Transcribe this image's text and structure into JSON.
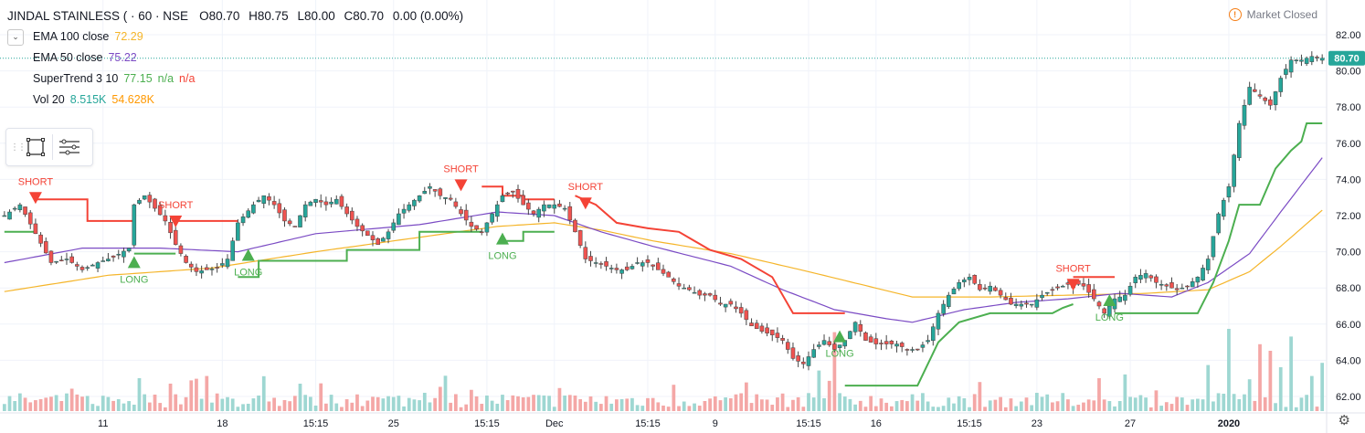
{
  "header": {
    "symbol": "JINDAL STAINLESS ( · 60 · NSE",
    "open": "O80.70",
    "high": "H80.75",
    "low": "L80.00",
    "close": "C80.70",
    "change": "0.00 (0.00%)",
    "market_status": "Market Closed"
  },
  "indicators": [
    {
      "name": "EMA 100 close",
      "value": "72.29",
      "color": "#f5b52a"
    },
    {
      "name": "EMA 50 close",
      "value": "75.22",
      "color": "#7b4bc4"
    },
    {
      "name": "SuperTrend 3 10",
      "value": "77.15",
      "extra1": "n/a",
      "extra2": "n/a",
      "color": "#4caf50",
      "color2": "#f44336"
    },
    {
      "name": "Vol 20",
      "value": "8.515K",
      "extra1": "54.628K",
      "color": "#26a69a",
      "color2": "#ff9800"
    }
  ],
  "toolbar": {
    "grip_icon": "drag-handle-icon",
    "rect_icon": "rectangle-tool-icon",
    "list_icon": "settings-list-icon"
  },
  "chart_data": {
    "type": "candlestick",
    "y_axis": {
      "min": 62,
      "max": 82,
      "ticks": [
        "82.00",
        "80.00",
        "78.00",
        "76.00",
        "74.00",
        "72.00",
        "70.00",
        "68.00",
        "66.00",
        "64.00",
        "62.00"
      ]
    },
    "last_price_label": "80.70",
    "x_ticks": [
      {
        "label": "11",
        "bar": 19
      },
      {
        "label": "18",
        "bar": 42
      },
      {
        "label": "15:15",
        "bar": 60
      },
      {
        "label": "25",
        "bar": 75
      },
      {
        "label": "15:15",
        "bar": 93
      },
      {
        "label": "Dec",
        "bar": 106
      },
      {
        "label": "15:15",
        "bar": 124
      },
      {
        "label": "9",
        "bar": 137
      },
      {
        "label": "15:15",
        "bar": 155
      },
      {
        "label": "16",
        "bar": 168
      },
      {
        "label": "15:15",
        "bar": 186
      },
      {
        "label": "23",
        "bar": 199
      },
      {
        "label": "27",
        "bar": 217
      },
      {
        "label": "2020",
        "bar": 236
      }
    ],
    "price_anchors": [
      [
        0,
        72.0
      ],
      [
        3,
        72.6
      ],
      [
        6,
        71.0
      ],
      [
        9,
        69.4
      ],
      [
        12,
        69.6
      ],
      [
        15,
        69.0
      ],
      [
        18,
        69.4
      ],
      [
        21,
        69.7
      ],
      [
        24,
        70.2
      ],
      [
        25,
        72.6
      ],
      [
        27,
        73.1
      ],
      [
        29,
        72.4
      ],
      [
        31,
        71.7
      ],
      [
        33,
        70.4
      ],
      [
        35,
        69.4
      ],
      [
        37,
        68.9
      ],
      [
        39,
        69.0
      ],
      [
        41,
        69.1
      ],
      [
        43,
        69.6
      ],
      [
        45,
        71.6
      ],
      [
        48,
        72.6
      ],
      [
        50,
        73.1
      ],
      [
        52,
        72.6
      ],
      [
        54,
        71.7
      ],
      [
        56,
        71.4
      ],
      [
        58,
        72.6
      ],
      [
        60,
        72.9
      ],
      [
        62,
        72.6
      ],
      [
        64,
        72.9
      ],
      [
        66,
        72.1
      ],
      [
        68,
        71.4
      ],
      [
        70,
        70.9
      ],
      [
        72,
        70.4
      ],
      [
        74,
        71.1
      ],
      [
        76,
        72.1
      ],
      [
        78,
        72.6
      ],
      [
        80,
        73.1
      ],
      [
        82,
        73.6
      ],
      [
        84,
        73.1
      ],
      [
        86,
        72.9
      ],
      [
        88,
        72.1
      ],
      [
        90,
        71.4
      ],
      [
        92,
        71.1
      ],
      [
        94,
        72.1
      ],
      [
        96,
        73.1
      ],
      [
        98,
        73.3
      ],
      [
        100,
        72.6
      ],
      [
        102,
        72.1
      ],
      [
        104,
        72.6
      ],
      [
        106,
        72.6
      ],
      [
        108,
        72.4
      ],
      [
        110,
        71.1
      ],
      [
        112,
        69.6
      ],
      [
        114,
        69.4
      ],
      [
        116,
        69.2
      ],
      [
        118,
        69.0
      ],
      [
        120,
        69.0
      ],
      [
        122,
        69.4
      ],
      [
        124,
        69.4
      ],
      [
        126,
        69.0
      ],
      [
        128,
        68.6
      ],
      [
        130,
        68.1
      ],
      [
        132,
        67.9
      ],
      [
        134,
        67.6
      ],
      [
        136,
        67.6
      ],
      [
        138,
        67.1
      ],
      [
        140,
        67.1
      ],
      [
        142,
        66.6
      ],
      [
        144,
        65.9
      ],
      [
        146,
        65.6
      ],
      [
        148,
        65.4
      ],
      [
        150,
        65.1
      ],
      [
        152,
        64.1
      ],
      [
        154,
        63.8
      ],
      [
        156,
        64.6
      ],
      [
        158,
        65.1
      ],
      [
        160,
        64.6
      ],
      [
        162,
        65.1
      ],
      [
        164,
        66.1
      ],
      [
        166,
        65.1
      ],
      [
        168,
        64.9
      ],
      [
        170,
        64.9
      ],
      [
        172,
        64.9
      ],
      [
        174,
        64.6
      ],
      [
        176,
        64.6
      ],
      [
        178,
        65.1
      ],
      [
        180,
        66.6
      ],
      [
        182,
        67.6
      ],
      [
        184,
        68.3
      ],
      [
        186,
        68.6
      ],
      [
        188,
        67.9
      ],
      [
        190,
        68.1
      ],
      [
        192,
        67.6
      ],
      [
        194,
        67.1
      ],
      [
        196,
        67.1
      ],
      [
        198,
        67.1
      ],
      [
        200,
        67.6
      ],
      [
        202,
        67.9
      ],
      [
        204,
        68.1
      ],
      [
        206,
        68.3
      ],
      [
        208,
        68.1
      ],
      [
        210,
        67.4
      ],
      [
        212,
        66.6
      ],
      [
        214,
        67.4
      ],
      [
        216,
        67.6
      ],
      [
        218,
        68.6
      ],
      [
        220,
        68.8
      ],
      [
        222,
        68.3
      ],
      [
        224,
        68.1
      ],
      [
        226,
        67.9
      ],
      [
        228,
        68.1
      ],
      [
        230,
        68.6
      ],
      [
        232,
        69.6
      ],
      [
        234,
        72.1
      ],
      [
        236,
        73.6
      ],
      [
        238,
        77.1
      ],
      [
        240,
        79.1
      ],
      [
        242,
        78.6
      ],
      [
        244,
        78.1
      ],
      [
        246,
        79.6
      ],
      [
        248,
        80.6
      ],
      [
        250,
        80.6
      ],
      [
        252,
        80.8
      ],
      [
        254,
        80.7
      ]
    ],
    "bar_count": 255,
    "ema50_anchors": [
      [
        0,
        69.4
      ],
      [
        15,
        70.2
      ],
      [
        30,
        70.2
      ],
      [
        45,
        70.0
      ],
      [
        60,
        71.0
      ],
      [
        80,
        71.5
      ],
      [
        95,
        72.2
      ],
      [
        106,
        72.0
      ],
      [
        115,
        71.1
      ],
      [
        125,
        70.3
      ],
      [
        140,
        69.2
      ],
      [
        150,
        67.9
      ],
      [
        160,
        66.8
      ],
      [
        170,
        66.3
      ],
      [
        175,
        66.1
      ],
      [
        185,
        66.8
      ],
      [
        195,
        67.2
      ],
      [
        205,
        67.4
      ],
      [
        215,
        67.7
      ],
      [
        225,
        67.5
      ],
      [
        232,
        68.3
      ],
      [
        240,
        69.9
      ],
      [
        246,
        72.2
      ],
      [
        254,
        75.2
      ]
    ],
    "ema100_anchors": [
      [
        0,
        67.8
      ],
      [
        20,
        68.7
      ],
      [
        40,
        69.1
      ],
      [
        60,
        70.0
      ],
      [
        80,
        70.8
      ],
      [
        95,
        71.4
      ],
      [
        106,
        71.6
      ],
      [
        115,
        71.2
      ],
      [
        125,
        70.6
      ],
      [
        140,
        69.9
      ],
      [
        155,
        68.9
      ],
      [
        165,
        68.2
      ],
      [
        175,
        67.5
      ],
      [
        190,
        67.5
      ],
      [
        205,
        67.6
      ],
      [
        220,
        67.7
      ],
      [
        232,
        67.9
      ],
      [
        240,
        68.9
      ],
      [
        246,
        70.3
      ],
      [
        254,
        72.3
      ]
    ],
    "supertrend_segments": [
      {
        "trend": "up",
        "points": [
          [
            0,
            71.1
          ],
          [
            6,
            71.1
          ]
        ]
      },
      {
        "trend": "down",
        "points": [
          [
            6,
            72.9
          ],
          [
            16,
            72.9
          ],
          [
            16,
            71.7
          ],
          [
            24,
            71.7
          ],
          [
            25,
            71.7
          ]
        ]
      },
      {
        "trend": "up",
        "points": [
          [
            25,
            69.9
          ],
          [
            33,
            69.9
          ]
        ]
      },
      {
        "trend": "down",
        "points": [
          [
            33,
            71.7
          ],
          [
            45,
            71.7
          ]
        ]
      },
      {
        "trend": "up",
        "points": [
          [
            45,
            68.6
          ],
          [
            49,
            68.6
          ],
          [
            49,
            69.5
          ],
          [
            66,
            69.5
          ],
          [
            66,
            70.1
          ],
          [
            80,
            70.1
          ],
          [
            80,
            71.1
          ],
          [
            92,
            71.1
          ]
        ]
      },
      {
        "trend": "down",
        "points": [
          [
            92,
            73.6
          ],
          [
            96,
            73.6
          ],
          [
            96,
            73.1
          ],
          [
            100,
            73.1
          ],
          [
            100,
            72.9
          ],
          [
            106,
            72.9
          ]
        ]
      },
      {
        "trend": "up",
        "points": [
          [
            96,
            70.6
          ],
          [
            100,
            70.6
          ],
          [
            100,
            71.1
          ],
          [
            106,
            71.1
          ]
        ]
      },
      {
        "trend": "down",
        "points": [
          [
            110,
            73.1
          ],
          [
            114,
            72.6
          ],
          [
            118,
            71.6
          ],
          [
            124,
            71.3
          ],
          [
            130,
            71.1
          ],
          [
            136,
            70.1
          ],
          [
            142,
            69.6
          ],
          [
            148,
            68.6
          ],
          [
            152,
            66.6
          ],
          [
            162,
            66.6
          ]
        ]
      },
      {
        "trend": "up",
        "points": [
          [
            162,
            62.6
          ],
          [
            176,
            62.6
          ],
          [
            180,
            65.0
          ],
          [
            184,
            66.1
          ],
          [
            190,
            66.6
          ],
          [
            196,
            66.6
          ],
          [
            202,
            66.6
          ],
          [
            204,
            66.9
          ],
          [
            206,
            67.1
          ]
        ]
      },
      {
        "trend": "down",
        "points": [
          [
            206,
            68.6
          ],
          [
            214,
            68.6
          ]
        ]
      },
      {
        "trend": "up",
        "points": [
          [
            214,
            66.6
          ],
          [
            230,
            66.6
          ],
          [
            233,
            68.3
          ],
          [
            236,
            70.6
          ],
          [
            238,
            72.6
          ],
          [
            242,
            72.6
          ],
          [
            245,
            74.6
          ],
          [
            248,
            75.6
          ],
          [
            250,
            76.1
          ],
          [
            251,
            77.1
          ],
          [
            254,
            77.1
          ]
        ]
      }
    ],
    "signals": [
      {
        "type": "short",
        "label": "SHORT",
        "bar": 6,
        "price": 73.3
      },
      {
        "type": "long",
        "label": "LONG",
        "bar": 25,
        "price": 69.1
      },
      {
        "type": "short",
        "label": "SHORT",
        "bar": 33,
        "price": 72.0
      },
      {
        "type": "long",
        "label": "LONG",
        "bar": 47,
        "price": 69.5
      },
      {
        "type": "short",
        "label": "SHORT",
        "bar": 88,
        "price": 74.0
      },
      {
        "type": "long",
        "label": "LONG",
        "bar": 96,
        "price": 70.4
      },
      {
        "type": "short",
        "label": "SHORT",
        "bar": 112,
        "price": 73.0
      },
      {
        "type": "long",
        "label": "LONG",
        "bar": 161,
        "price": 65.0
      },
      {
        "type": "short",
        "label": "SHORT",
        "bar": 206,
        "price": 68.5
      },
      {
        "type": "long",
        "label": "LONG",
        "bar": 213,
        "price": 67.0
      }
    ],
    "volume_spikes": [
      [
        26,
        3
      ],
      [
        36,
        2.8
      ],
      [
        39,
        3.2
      ],
      [
        57,
        2.5
      ],
      [
        129,
        2.4
      ],
      [
        157,
        3.7
      ],
      [
        160,
        7.2
      ],
      [
        211,
        3.0
      ],
      [
        232,
        4.2
      ],
      [
        236,
        7.5
      ],
      [
        240,
        2.9
      ],
      [
        242,
        6.1
      ],
      [
        244,
        5.5
      ],
      [
        246,
        4.0
      ],
      [
        248,
        6.8
      ],
      [
        252,
        3.2
      ],
      [
        254,
        4.4
      ]
    ],
    "colors": {
      "up": "#26a69a",
      "down": "#ef5350",
      "wick": "#444444",
      "vol_up": "#9ed7d2",
      "vol_down": "#f4a7a6",
      "grid": "#f0f3fa",
      "price_line": "#26a69a",
      "price_label_bg": "#26a69a"
    }
  }
}
